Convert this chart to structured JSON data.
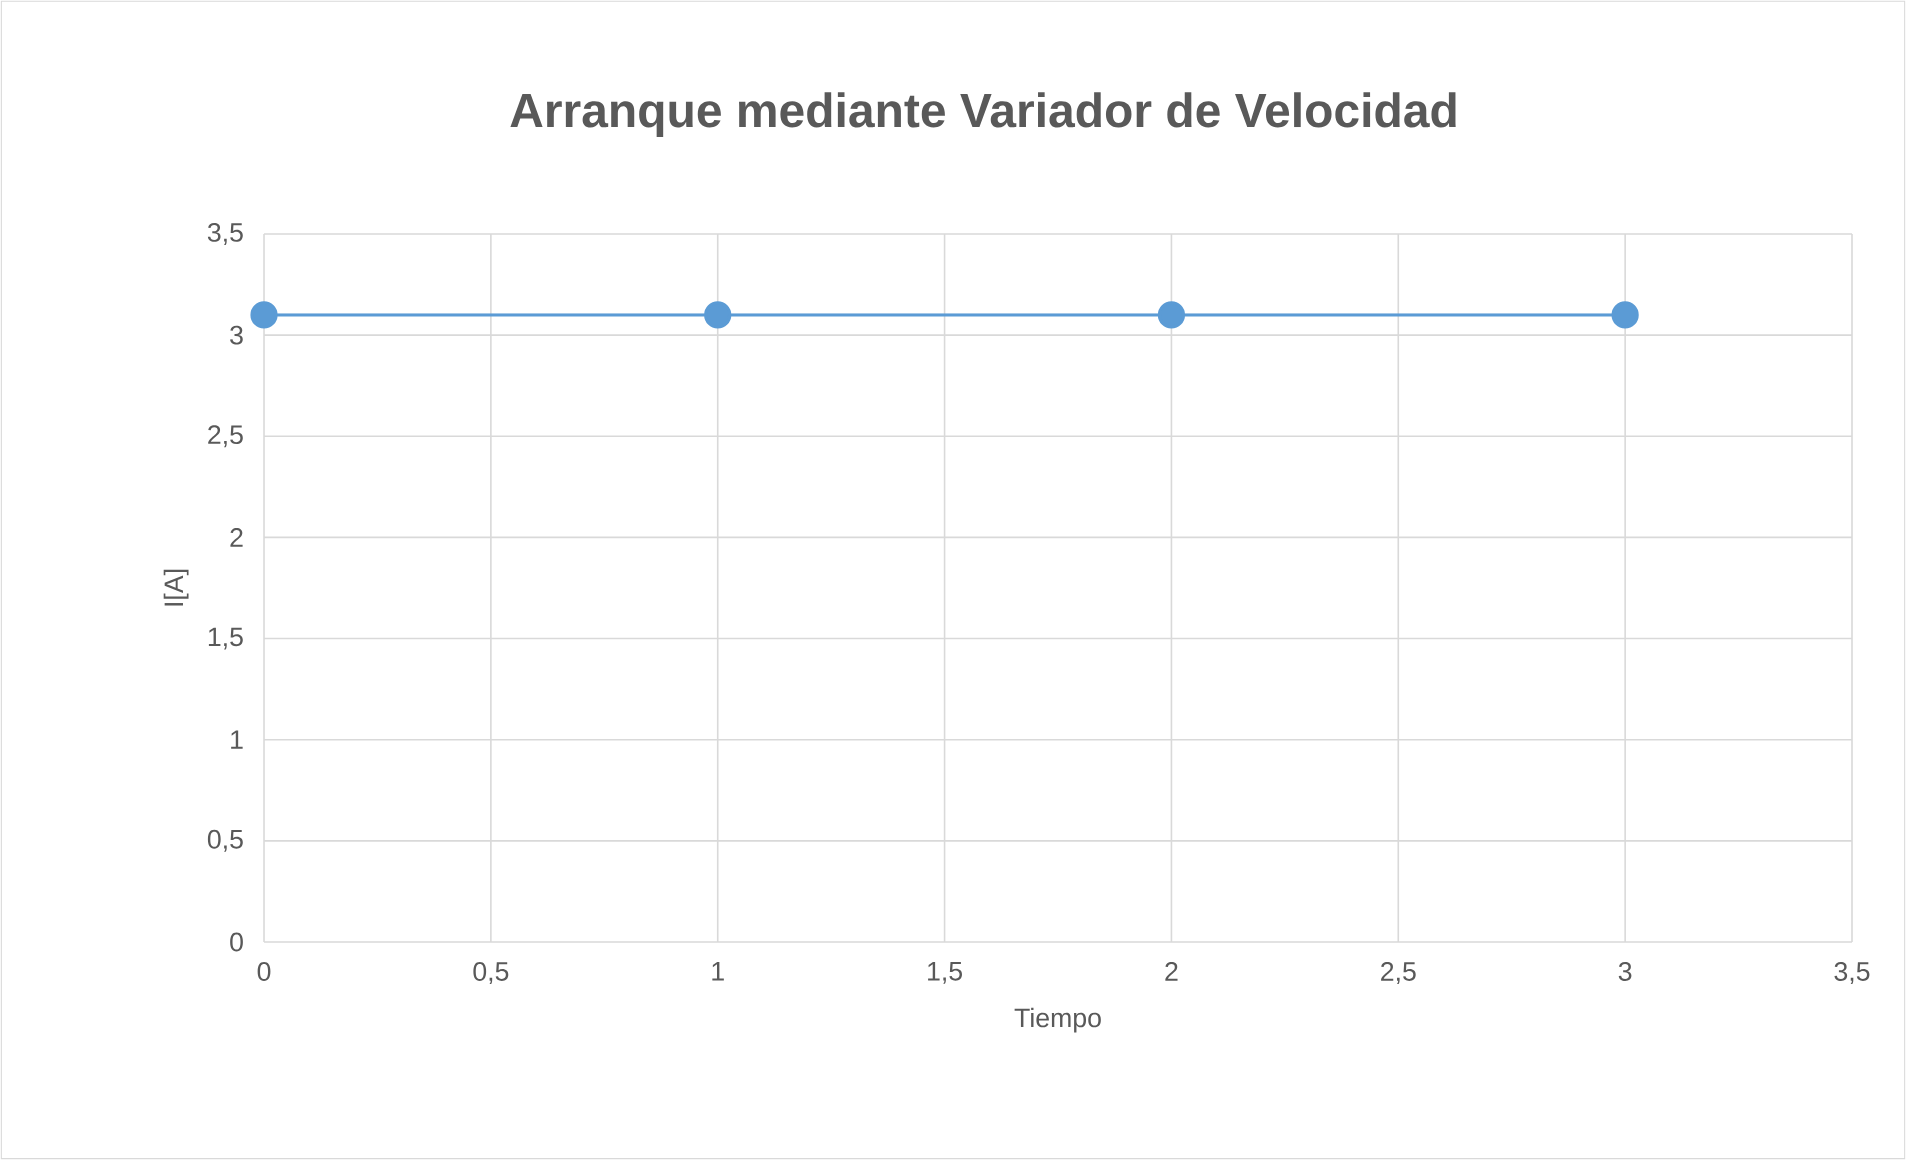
{
  "chart_data": {
    "type": "line",
    "title": "Arranque mediante Variador de Velocidad",
    "xlabel": "Tiempo",
    "ylabel": "I[A]",
    "x": [
      0,
      1,
      2,
      3
    ],
    "series": [
      {
        "color": "#5b9bd5",
        "values": [
          3.1,
          3.1,
          3.1,
          3.1
        ]
      }
    ],
    "xlim": [
      0,
      3.5
    ],
    "ylim": [
      0,
      3.5
    ],
    "xticks": [
      0,
      {
        "value": 0.5,
        "label": "0,5"
      },
      1,
      {
        "value": 1.5,
        "label": "1,5"
      },
      2,
      {
        "value": 2.5,
        "label": "2,5"
      },
      3,
      {
        "value": 3.5,
        "label": "3,5"
      }
    ],
    "yticks": [
      0,
      {
        "value": 0.5,
        "label": "0,5"
      },
      1,
      {
        "value": 1.5,
        "label": "1,5"
      },
      2,
      {
        "value": 2.5,
        "label": "2,5"
      },
      3,
      {
        "value": 3.5,
        "label": "3,5"
      }
    ],
    "grid": true,
    "marker": "circle",
    "line_style": "solid",
    "legend": false
  }
}
